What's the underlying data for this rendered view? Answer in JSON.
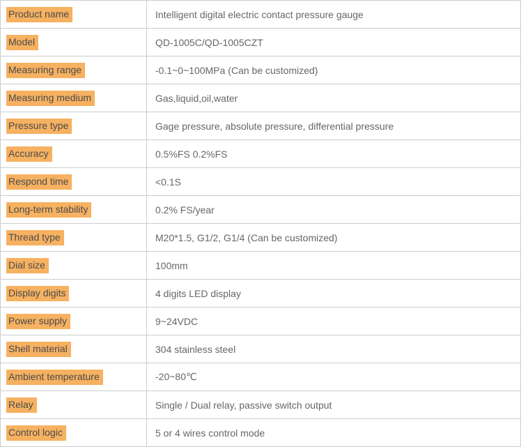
{
  "table": {
    "rows": [
      {
        "label": "Product name",
        "value": "Intelligent digital electric contact pressure gauge"
      },
      {
        "label": "Model",
        "value": "QD-1005C/QD-1005CZT"
      },
      {
        "label": "Measuring range",
        "value": "-0.1~0~100MPa (Can be customized)"
      },
      {
        "label": "Measuring medium",
        "value": "Gas,liquid,oil,water"
      },
      {
        "label": "Pressure type",
        "value": "Gage pressure, absolute pressure, differential pressure"
      },
      {
        "label": "Accuracy",
        "value": "0.5%FS 0.2%FS"
      },
      {
        "label": "Respond time",
        "value": "<0.1S"
      },
      {
        "label": "Long-term stability",
        "value": "0.2% FS/year"
      },
      {
        "label": "Thread type",
        "value": "M20*1.5, G1/2, G1/4 (Can be customized)"
      },
      {
        "label": "Dial size",
        "value": "100mm"
      },
      {
        "label": "Display digits",
        "value": "4 digits LED display"
      },
      {
        "label": "Power supply",
        "value": "9~24VDC"
      },
      {
        "label": "Shell material",
        "value": "304 stainless steel"
      },
      {
        "label": "Ambient temperature",
        "value": "-20~80℃"
      },
      {
        "label": "Relay",
        "value": "Single / Dual relay, passive switch output"
      },
      {
        "label": "Control logic",
        "value": "5 or 4 wires control mode"
      }
    ]
  },
  "colors": {
    "label_highlight": "#F6B161",
    "border": "#CCCCCC",
    "label_text": "#4B4B4B",
    "value_text": "#666666"
  }
}
